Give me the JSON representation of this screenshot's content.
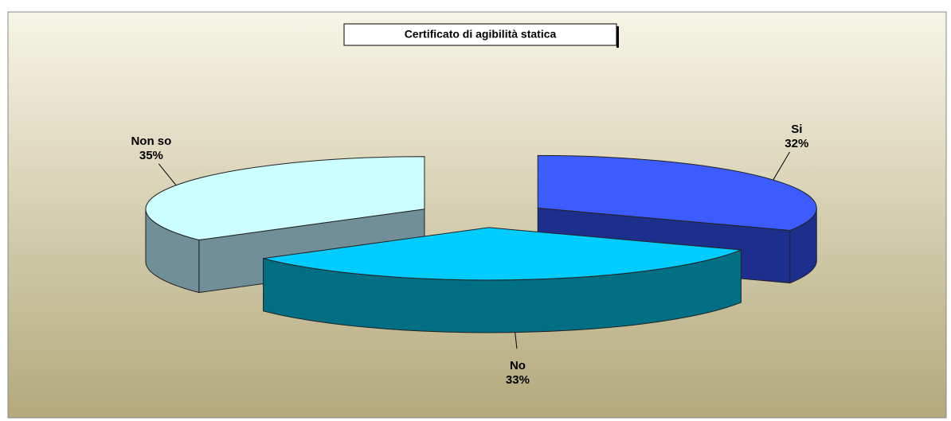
{
  "chart_data": {
    "type": "pie3d",
    "title": "Certificato di agibilità statica",
    "categories": [
      "Si",
      "No",
      "Non so"
    ],
    "values": [
      32,
      33,
      35
    ],
    "value_labels": [
      "32%",
      "33%",
      "35%"
    ],
    "colors": [
      "#3d5cff",
      "#00ccff",
      "#ccffff"
    ],
    "side_colors": [
      "#1c2f8c",
      "#006f84",
      "#718f98"
    ]
  }
}
